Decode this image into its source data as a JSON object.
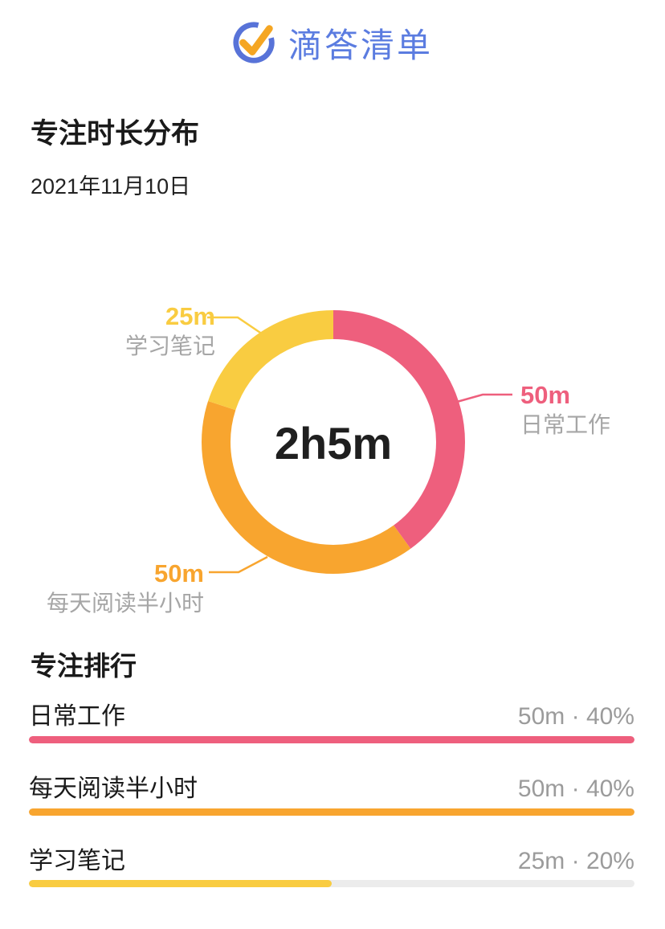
{
  "header": {
    "app_name": "滴答清单",
    "logo_circle_color": "#5873d8",
    "logo_check_color": "#f5a623",
    "logo_text_color": "#5b7ce0"
  },
  "page": {
    "title": "专注时长分布",
    "date": "2021年11月10日"
  },
  "chart_data": {
    "type": "pie",
    "title": "专注时长分布",
    "subtitle": "2021年11月10日",
    "center_label": "2h5m",
    "total_minutes": 125,
    "legend_position": "callouts",
    "series": [
      {
        "name": "日常工作",
        "duration_label": "50m",
        "minutes": 50,
        "percent": 40,
        "color": "#ee5f7d"
      },
      {
        "name": "每天阅读半小时",
        "duration_label": "50m",
        "minutes": 50,
        "percent": 40,
        "color": "#f8a52f"
      },
      {
        "name": "学习笔记",
        "duration_label": "25m",
        "minutes": 25,
        "percent": 20,
        "color": "#f9cc41"
      }
    ]
  },
  "ranking": {
    "title": "专注排行",
    "track_color": "#ececec",
    "rows": [
      {
        "label": "日常工作",
        "value": "50m · 40%",
        "minutes": 50,
        "color": "#ee5f7d"
      },
      {
        "label": "每天阅读半小时",
        "value": "50m · 40%",
        "minutes": 50,
        "color": "#f8a52f"
      },
      {
        "label": "学习笔记",
        "value": "25m · 20%",
        "minutes": 25,
        "color": "#f9cc41"
      }
    ]
  }
}
